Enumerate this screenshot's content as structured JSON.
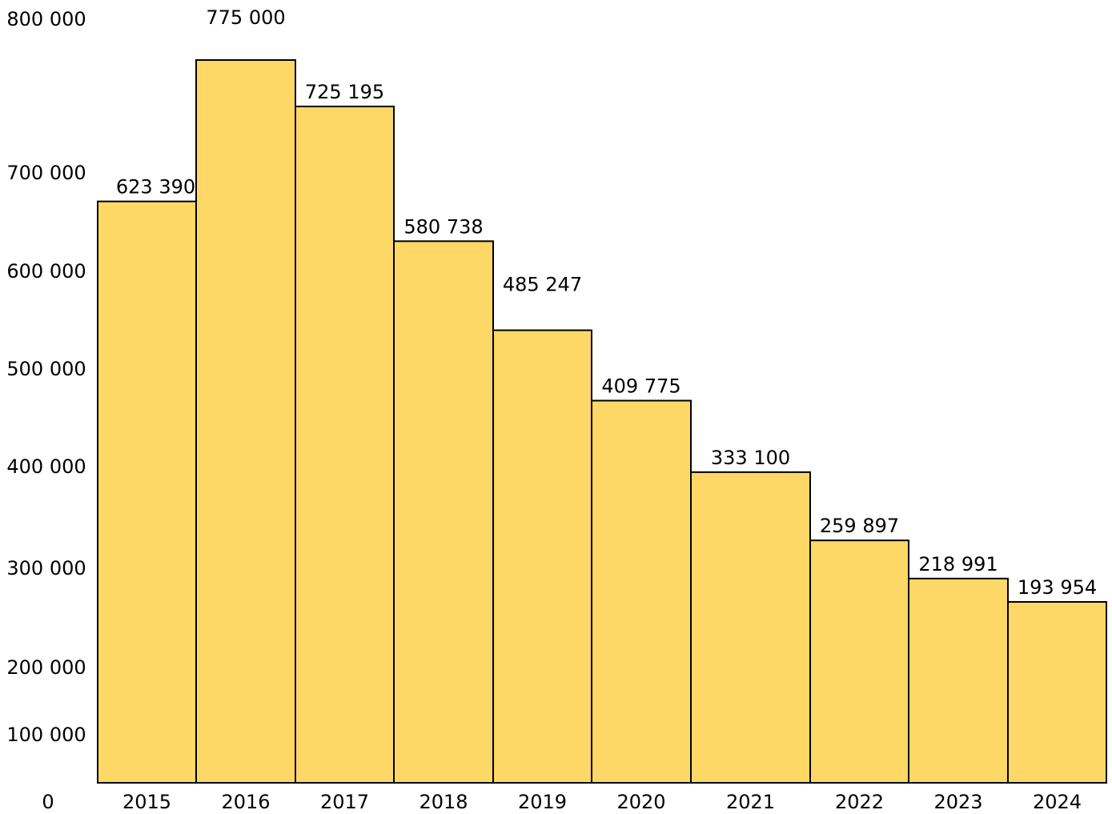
{
  "chart_data": {
    "type": "bar",
    "categories": [
      "2015",
      "2016",
      "2017",
      "2018",
      "2019",
      "2020",
      "2021",
      "2022",
      "2023",
      "2024"
    ],
    "values": [
      623390,
      775000,
      725195,
      580738,
      485247,
      409775,
      333100,
      259897,
      218991,
      193954
    ],
    "value_labels": [
      "623 390",
      "775 000",
      "725 195",
      "580 738",
      "485 247",
      "409 775",
      "333 100",
      "259 897",
      "218 991",
      "193 954"
    ],
    "y_tick_labels": [
      "0",
      "100 000",
      "200 000",
      "300 000",
      "400 000",
      "500 000",
      "600 000",
      "700 000",
      "800 000"
    ],
    "ylim": [
      0,
      800000
    ],
    "grid": false,
    "legend": "none",
    "bar_color": "#fdd866",
    "edge_color": "#000000"
  }
}
